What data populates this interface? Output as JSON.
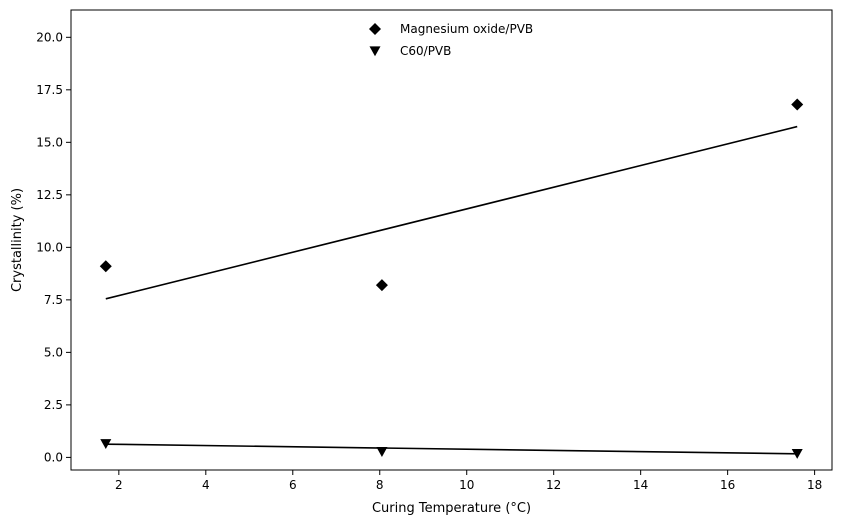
{
  "chart_data": {
    "type": "scatter",
    "title": "",
    "xlabel": "Curing Temperature (°C)",
    "ylabel": "Crystallinity (%)",
    "xlim": [
      0.9,
      18.4
    ],
    "ylim": [
      -0.6,
      21.3
    ],
    "xticks": [
      2,
      4,
      6,
      8,
      10,
      12,
      14,
      16,
      18
    ],
    "xtick_labels": [
      "2",
      "4",
      "6",
      "8",
      "10",
      "12",
      "14",
      "16",
      "18"
    ],
    "yticks": [
      0,
      2.5,
      5,
      7.5,
      10,
      12.5,
      15,
      17.5,
      20
    ],
    "ytick_labels": [
      "0.0",
      "2.5",
      "5.0",
      "7.5",
      "10.0",
      "12.5",
      "15.0",
      "17.5",
      "20.0"
    ],
    "grid": false,
    "legend_position": "top-center",
    "series": [
      {
        "name": "Magnesium oxide/PVB",
        "marker": "diamond",
        "color": "#000000",
        "x": [
          1.7,
          8.05,
          17.6
        ],
        "y": [
          9.1,
          8.2,
          16.8
        ],
        "fit_line": {
          "x": [
            1.7,
            17.6
          ],
          "y": [
            7.55,
            15.75
          ]
        }
      },
      {
        "name": "C60/PVB",
        "marker": "triangle-down",
        "color": "#000000",
        "x": [
          1.7,
          8.05,
          17.6
        ],
        "y": [
          0.65,
          0.27,
          0.18
        ],
        "fit_line": {
          "x": [
            1.7,
            17.6
          ],
          "y": [
            0.63,
            0.17
          ]
        }
      }
    ]
  }
}
